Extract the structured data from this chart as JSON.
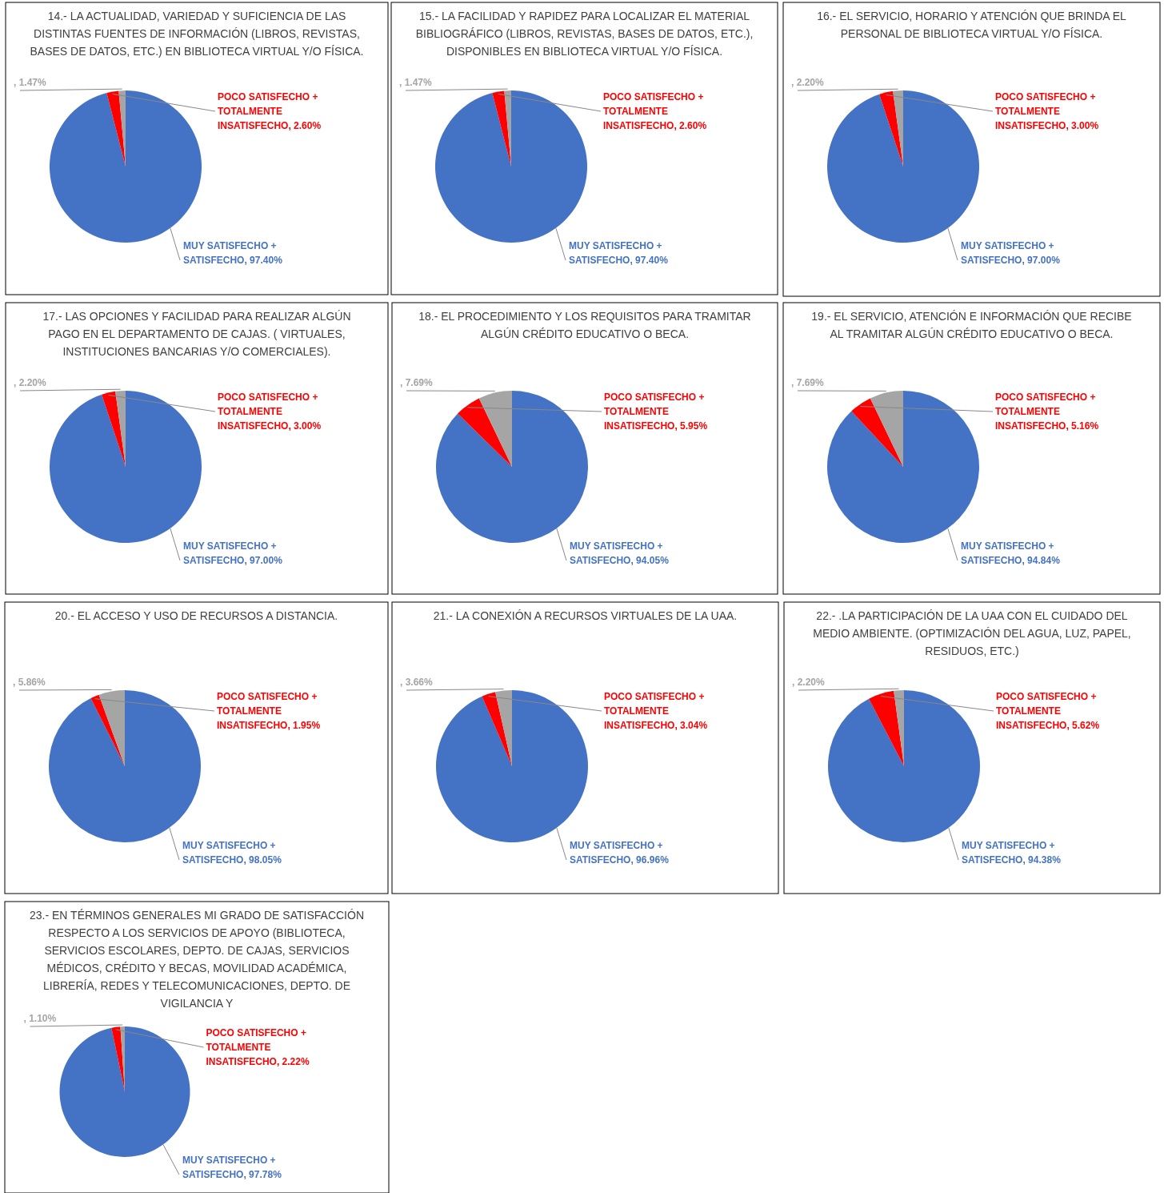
{
  "chart_data": [
    {
      "type": "pie",
      "title": "14.- LA ACTUALIDAD, VARIEDAD Y SUFICIENCIA DE LAS DISTINTAS FUENTES DE INFORMACIÓN (LIBROS, REVISTAS, BASES DE DATOS, ETC.) EN BIBLIOTECA VIRTUAL Y/O FÍSICA.",
      "categories": [
        "MUY SATISFECHO + SATISFECHO",
        "POCO SATISFECHO + TOTALMENTE INSATISFECHO",
        null
      ],
      "values": [
        97.4,
        2.6,
        1.47
      ],
      "value_labels": [
        ", 97.40%",
        ", 2.60%",
        ", 1.47%"
      ],
      "colors": [
        "#4472c4",
        "#ff0000",
        "#a5a5a5"
      ]
    },
    {
      "type": "pie",
      "title": "15.- LA FACILIDAD Y RAPIDEZ PARA LOCALIZAR EL MATERIAL BIBLIOGRÁFICO (LIBROS, REVISTAS, BASES DE DATOS, ETC.), DISPONIBLES EN BIBLIOTECA VIRTUAL Y/O FÍSICA.",
      "categories": [
        "MUY SATISFECHO + SATISFECHO",
        "POCO SATISFECHO + TOTALMENTE INSATISFECHO",
        null
      ],
      "values": [
        97.4,
        2.6,
        1.47
      ],
      "value_labels": [
        ", 97.40%",
        ", 2.60%",
        ", 1.47%"
      ],
      "colors": [
        "#4472c4",
        "#ff0000",
        "#a5a5a5"
      ]
    },
    {
      "type": "pie",
      "title": "16.- EL SERVICIO, HORARIO Y ATENCIÓN QUE BRINDA EL PERSONAL DE BIBLIOTECA VIRTUAL Y/O FÍSICA.",
      "categories": [
        "MUY SATISFECHO + SATISFECHO",
        "POCO SATISFECHO + TOTALMENTE INSATISFECHO",
        null
      ],
      "values": [
        97.0,
        3.0,
        2.2
      ],
      "value_labels": [
        ", 97.00%",
        ", 3.00%",
        ", 2.20%"
      ],
      "colors": [
        "#4472c4",
        "#ff0000",
        "#a5a5a5"
      ]
    },
    {
      "type": "pie",
      "title": "17.- LAS OPCIONES Y FACILIDAD PARA REALIZAR ALGÚN PAGO EN EL DEPARTAMENTO DE CAJAS. ( VIRTUALES, INSTITUCIONES BANCARIAS Y/O COMERCIALES).",
      "categories": [
        "MUY SATISFECHO + SATISFECHO",
        "POCO SATISFECHO + TOTALMENTE INSATISFECHO",
        null
      ],
      "values": [
        97.0,
        3.0,
        2.2
      ],
      "value_labels": [
        ", 97.00%",
        ", 3.00%",
        ", 2.20%"
      ],
      "colors": [
        "#4472c4",
        "#ff0000",
        "#a5a5a5"
      ]
    },
    {
      "type": "pie",
      "title": "18.- EL PROCEDIMIENTO Y LOS REQUISITOS PARA TRAMITAR ALGÚN CRÉDITO EDUCATIVO O BECA.",
      "categories": [
        "MUY SATISFECHO + SATISFECHO",
        "POCO SATISFECHO + TOTALMENTE INSATISFECHO",
        null
      ],
      "values": [
        94.05,
        5.95,
        7.69
      ],
      "value_labels": [
        ", 94.05%",
        ", 5.95%",
        ", 7.69%"
      ],
      "colors": [
        "#4472c4",
        "#ff0000",
        "#a5a5a5"
      ]
    },
    {
      "type": "pie",
      "title": "19.- EL SERVICIO, ATENCIÓN E INFORMACIÓN QUE RECIBE AL TRAMITAR  ALGÚN CRÉDITO EDUCATIVO O BECA.",
      "categories": [
        "MUY SATISFECHO + SATISFECHO",
        "POCO SATISFECHO + TOTALMENTE INSATISFECHO",
        null
      ],
      "values": [
        94.84,
        5.16,
        7.69
      ],
      "value_labels": [
        ", 94.84%",
        ", 5.16%",
        ", 7.69%"
      ],
      "colors": [
        "#4472c4",
        "#ff0000",
        "#a5a5a5"
      ]
    },
    {
      "type": "pie",
      "title": "20.-  EL ACCESO Y USO DE RECURSOS A DISTANCIA.",
      "categories": [
        "MUY SATISFECHO + SATISFECHO",
        "POCO SATISFECHO + TOTALMENTE INSATISFECHO",
        null
      ],
      "values": [
        98.05,
        1.95,
        5.86
      ],
      "value_labels": [
        ", 98.05%",
        ", 1.95%",
        ", 5.86%"
      ],
      "colors": [
        "#4472c4",
        "#ff0000",
        "#a5a5a5"
      ]
    },
    {
      "type": "pie",
      "title": "21.-  LA CONEXIÓN A RECURSOS VIRTUALES DE LA UAA.",
      "categories": [
        "MUY SATISFECHO + SATISFECHO",
        "POCO SATISFECHO + TOTALMENTE INSATISFECHO",
        null
      ],
      "values": [
        96.96,
        3.04,
        3.66
      ],
      "value_labels": [
        ", 96.96%",
        ", 3.04%",
        ", 3.66%"
      ],
      "colors": [
        "#4472c4",
        "#ff0000",
        "#a5a5a5"
      ]
    },
    {
      "type": "pie",
      "title": "22.- .LA PARTICIPACIÓN DE LA UAA CON EL CUIDADO DEL MEDIO AMBIENTE. (OPTIMIZACIÓN DEL AGUA, LUZ, PAPEL, RESIDUOS, ETC.)",
      "categories": [
        "MUY SATISFECHO + SATISFECHO",
        "POCO SATISFECHO + TOTALMENTE INSATISFECHO",
        null
      ],
      "values": [
        94.38,
        5.62,
        2.2
      ],
      "value_labels": [
        ", 94.38%",
        ", 5.62%",
        ", 2.20%"
      ],
      "colors": [
        "#4472c4",
        "#ff0000",
        "#a5a5a5"
      ]
    },
    {
      "type": "pie",
      "title": "23.- EN TÉRMINOS GENERALES MI GRADO DE SATISFACCIÓN RESPECTO A LOS SERVICIOS DE APOYO (BIBLIOTECA, SERVICIOS ESCOLARES, DEPTO. DE CAJAS, SERVICIOS MÉDICOS, CRÉDITO Y BECAS, MOVILIDAD ACADÉMICA, LIBRERÍA, REDES Y TELECOMUNICACIONES, DEPTO. DE VIGILANCIA Y",
      "categories": [
        "MUY SATISFECHO + SATISFECHO",
        "POCO SATISFECHO + TOTALMENTE INSATISFECHO",
        null
      ],
      "values": [
        97.78,
        2.22,
        1.1
      ],
      "value_labels": [
        ", 97.78%",
        ", 2.22%",
        ", 1.10%"
      ],
      "colors": [
        "#4472c4",
        "#ff0000",
        "#a5a5a5"
      ]
    }
  ]
}
